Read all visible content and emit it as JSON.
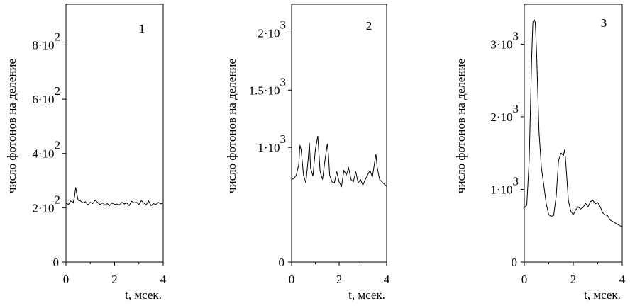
{
  "chart_data": [
    {
      "type": "line",
      "panel_label": "1",
      "xlabel": "t, мсек.",
      "ylabel": "число фотонов на деление",
      "xlim": [
        0,
        4
      ],
      "ylim": [
        0,
        950
      ],
      "xticks": [
        0,
        2,
        4
      ],
      "yticks": [
        {
          "value": 0,
          "mantissa": "0",
          "exponent": ""
        },
        {
          "value": 200,
          "mantissa": "2·10",
          "exponent": "2"
        },
        {
          "value": 400,
          "mantissa": "4·10",
          "exponent": "2"
        },
        {
          "value": 600,
          "mantissa": "6·10",
          "exponent": "2"
        },
        {
          "value": 800,
          "mantissa": "8·10",
          "exponent": "2"
        }
      ],
      "series": [
        {
          "x": [
            0,
            0.1,
            0.2,
            0.3,
            0.35,
            0.4,
            0.45,
            0.5,
            0.6,
            0.7,
            0.8,
            0.9,
            1.0,
            1.1,
            1.2,
            1.3,
            1.4,
            1.5,
            1.6,
            1.7,
            1.8,
            1.9,
            2.0,
            2.1,
            2.2,
            2.3,
            2.4,
            2.5,
            2.6,
            2.7,
            2.8,
            2.9,
            3.0,
            3.1,
            3.2,
            3.3,
            3.4,
            3.5,
            3.6,
            3.7,
            3.8,
            3.9,
            4.0
          ],
          "y": [
            218,
            212,
            225,
            220,
            240,
            275,
            250,
            228,
            225,
            218,
            222,
            210,
            220,
            215,
            228,
            220,
            212,
            218,
            210,
            215,
            208,
            218,
            212,
            214,
            210,
            220,
            214,
            218,
            208,
            224,
            218,
            220,
            212,
            226,
            218,
            210,
            225,
            208,
            215,
            212,
            220,
            214,
            218
          ]
        }
      ]
    },
    {
      "type": "line",
      "panel_label": "2",
      "xlabel": "t, мсек.",
      "ylabel": "число фотонов на деление",
      "xlim": [
        0,
        4
      ],
      "ylim": [
        0,
        2250
      ],
      "xticks": [
        0,
        2,
        4
      ],
      "yticks": [
        {
          "value": 0,
          "mantissa": "0",
          "exponent": ""
        },
        {
          "value": 1000,
          "mantissa": "1·10",
          "exponent": "3"
        },
        {
          "value": 1500,
          "mantissa": "1.5·10",
          "exponent": "3"
        },
        {
          "value": 2000,
          "mantissa": "2·10",
          "exponent": "3"
        }
      ],
      "series": [
        {
          "x": [
            0,
            0.1,
            0.2,
            0.3,
            0.35,
            0.4,
            0.5,
            0.6,
            0.7,
            0.75,
            0.8,
            0.9,
            1.0,
            1.1,
            1.2,
            1.3,
            1.4,
            1.5,
            1.55,
            1.6,
            1.7,
            1.8,
            1.9,
            2.0,
            2.1,
            2.2,
            2.3,
            2.4,
            2.5,
            2.6,
            2.7,
            2.8,
            2.9,
            3.0,
            3.1,
            3.2,
            3.3,
            3.4,
            3.5,
            3.55,
            3.6,
            3.7,
            3.8,
            3.9,
            4.0
          ],
          "y": [
            720,
            730,
            760,
            850,
            1020,
            980,
            760,
            690,
            900,
            1040,
            820,
            750,
            980,
            1100,
            790,
            720,
            880,
            1030,
            940,
            760,
            700,
            690,
            790,
            700,
            660,
            800,
            760,
            820,
            720,
            700,
            790,
            690,
            720,
            670,
            720,
            760,
            800,
            740,
            880,
            940,
            830,
            720,
            700,
            680,
            660
          ]
        }
      ]
    },
    {
      "type": "line",
      "panel_label": "3",
      "xlabel": "t, мсек.",
      "ylabel": "число фотонов на деление",
      "xlim": [
        0,
        4
      ],
      "ylim": [
        0,
        3550
      ],
      "xticks": [
        0,
        2,
        4
      ],
      "yticks": [
        {
          "value": 0,
          "mantissa": "0",
          "exponent": ""
        },
        {
          "value": 1000,
          "mantissa": "1·10",
          "exponent": "3"
        },
        {
          "value": 2000,
          "mantissa": "2·10",
          "exponent": "3"
        },
        {
          "value": 3000,
          "mantissa": "3·10",
          "exponent": "3"
        }
      ],
      "series": [
        {
          "x": [
            0,
            0.1,
            0.2,
            0.3,
            0.35,
            0.4,
            0.45,
            0.5,
            0.6,
            0.7,
            0.8,
            0.9,
            1.0,
            1.1,
            1.2,
            1.3,
            1.4,
            1.5,
            1.6,
            1.65,
            1.7,
            1.8,
            1.9,
            2.0,
            2.1,
            2.2,
            2.3,
            2.4,
            2.5,
            2.6,
            2.7,
            2.8,
            2.9,
            3.0,
            3.1,
            3.2,
            3.3,
            3.4,
            3.5,
            3.6,
            3.7,
            3.8,
            3.9,
            4.0
          ],
          "y": [
            750,
            780,
            1400,
            2800,
            3300,
            3340,
            3300,
            2900,
            1800,
            1300,
            1050,
            800,
            650,
            630,
            640,
            900,
            1400,
            1500,
            1470,
            1550,
            1350,
            850,
            700,
            650,
            720,
            760,
            730,
            750,
            810,
            760,
            830,
            850,
            800,
            820,
            760,
            680,
            650,
            640,
            580,
            560,
            540,
            520,
            500,
            490
          ]
        }
      ]
    }
  ]
}
